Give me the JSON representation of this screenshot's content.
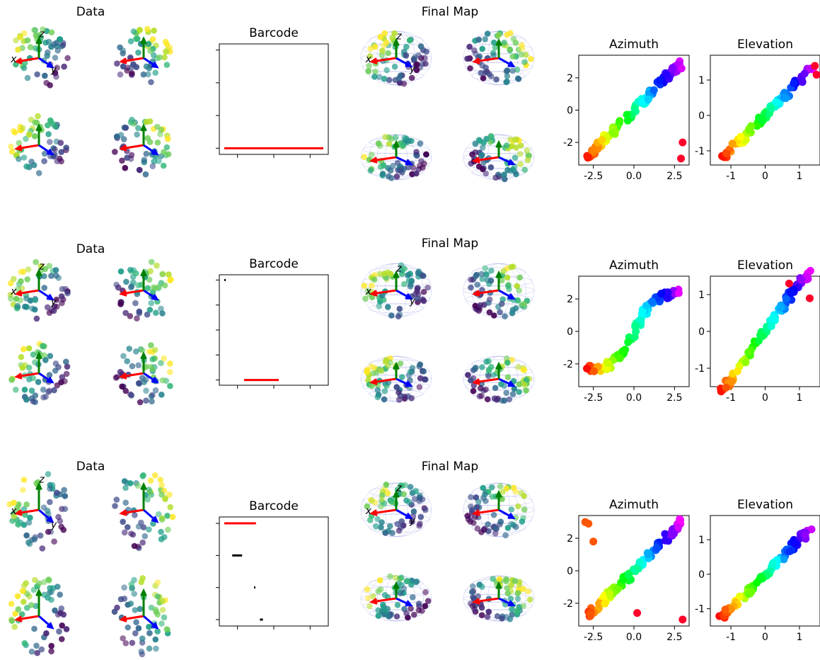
{
  "figure": {
    "background": "#ffffff"
  },
  "rows": [
    {
      "data_title": "Data",
      "map_title": "Final Map",
      "axis_letters": [
        "x",
        "y",
        "z"
      ],
      "barcode": {
        "title": "Barcode",
        "bars": [
          {
            "birth": 0.0,
            "death": 1.0,
            "level": 0,
            "color": "#ff0000"
          }
        ],
        "xlim": [
          -0.05,
          1.05
        ],
        "ylim": [
          -0.2,
          3.4
        ],
        "xticks": 3,
        "yticks": 4
      },
      "azimuth": {
        "title": "Azimuth",
        "xticks": [
          "-2.5",
          "0.0",
          "2.5"
        ],
        "xtick_values": [
          -2.5,
          0.0,
          2.5
        ],
        "yticks": [
          "-2",
          "0",
          "2"
        ],
        "ytick_values": [
          -2,
          0,
          2
        ],
        "xlim": [
          -3.4,
          3.4
        ],
        "ylim": [
          -3.4,
          3.4
        ],
        "profile": "line",
        "outliers": [
          [
            3.0,
            -2.0
          ],
          [
            2.9,
            -3.0
          ]
        ]
      },
      "elevation": {
        "title": "Elevation",
        "xticks": [
          "-1",
          "0",
          "1"
        ],
        "xtick_values": [
          -1,
          0,
          1
        ],
        "yticks": [
          "-1",
          "0",
          "1"
        ],
        "ytick_values": [
          -1,
          0,
          1
        ],
        "xlim": [
          -1.6,
          1.6
        ],
        "ylim": [
          -1.4,
          1.7
        ],
        "profile": "line",
        "outliers": [
          [
            1.45,
            1.4
          ],
          [
            1.5,
            1.15
          ]
        ]
      }
    },
    {
      "data_title": "Data",
      "map_title": "Final Map",
      "axis_letters": [
        "x",
        "y",
        "z"
      ],
      "barcode": {
        "title": "Barcode",
        "bars": [
          {
            "birth": 0.0,
            "death": 0.01,
            "level": 3.8,
            "color": "#000000"
          },
          {
            "birth": 0.2,
            "death": 0.55,
            "level": 0,
            "color": "#ff0000"
          }
        ],
        "xlim": [
          -0.05,
          1.05
        ],
        "ylim": [
          -0.2,
          4.0
        ],
        "xticks": 3,
        "yticks": 5
      },
      "azimuth": {
        "title": "Azimuth",
        "xticks": [
          "-2.5",
          "0.0",
          "2.5"
        ],
        "xtick_values": [
          -2.5,
          0.0,
          2.5
        ],
        "yticks": [
          "-2",
          "0",
          "2"
        ],
        "ytick_values": [
          -2,
          0,
          2
        ],
        "xlim": [
          -3.4,
          3.4
        ],
        "ylim": [
          -3.4,
          3.4
        ],
        "profile": "s",
        "outliers": []
      },
      "elevation": {
        "title": "Elevation",
        "xticks": [
          "-1",
          "0",
          "1"
        ],
        "xtick_values": [
          -1,
          0,
          1
        ],
        "yticks": [
          "-1",
          "0",
          "1"
        ],
        "ytick_values": [
          -1,
          0,
          1
        ],
        "xlim": [
          -1.6,
          1.6
        ],
        "ylim": [
          -1.5,
          1.5
        ],
        "profile": "s",
        "outliers": [
          [
            1.3,
            0.9
          ],
          [
            0.7,
            1.3
          ]
        ]
      }
    },
    {
      "data_title": "Data",
      "map_title": "Final Map",
      "axis_letters": [
        "x",
        "y",
        "z"
      ],
      "barcode": {
        "title": "Barcode",
        "bars": [
          {
            "birth": 0.0,
            "death": 0.32,
            "level": 3.0,
            "color": "#ff0000"
          },
          {
            "birth": 0.08,
            "death": 0.18,
            "level": 2.0,
            "color": "#000000"
          },
          {
            "birth": 0.3,
            "death": 0.31,
            "level": 1.0,
            "color": "#000000"
          },
          {
            "birth": 0.36,
            "death": 0.39,
            "level": 0,
            "color": "#000000"
          }
        ],
        "xlim": [
          -0.05,
          1.05
        ],
        "ylim": [
          -0.2,
          3.2
        ],
        "xticks": 3,
        "yticks": 4
      },
      "azimuth": {
        "title": "Azimuth",
        "xticks": [
          "-2.5",
          "0.0",
          "2.5"
        ],
        "xtick_values": [
          -2.5,
          0.0,
          2.5
        ],
        "yticks": [
          "-2",
          "0",
          "2"
        ],
        "ytick_values": [
          -2,
          0,
          2
        ],
        "xlim": [
          -3.4,
          3.4
        ],
        "ylim": [
          -3.4,
          3.4
        ],
        "profile": "line",
        "outliers": [
          [
            -3.0,
            3.0
          ],
          [
            -2.8,
            2.9
          ],
          [
            -2.5,
            1.8
          ],
          [
            3.0,
            -3.0
          ],
          [
            0.2,
            -2.6
          ]
        ]
      },
      "elevation": {
        "title": "Elevation",
        "xticks": [
          "-1",
          "0",
          "1"
        ],
        "xtick_values": [
          -1,
          0,
          1
        ],
        "yticks": [
          "-1",
          "0",
          "1"
        ],
        "ytick_values": [
          -1,
          0,
          1
        ],
        "xlim": [
          -1.6,
          1.6
        ],
        "ylim": [
          -1.5,
          1.7
        ],
        "profile": "line",
        "outliers": []
      }
    }
  ],
  "colors": {
    "x_arrow": "#ff0000",
    "y_arrow": "#0000ff",
    "z_arrow": "#008000",
    "sphere_wire": "#9aa0e6"
  },
  "chart_data": [
    {
      "type": "scatter",
      "title": "Azimuth",
      "xlabel": "",
      "ylabel": "",
      "description_values": "points lie close to the diagonal y = x, hue mapped around the color wheel",
      "xlim": [
        -3.4,
        3.4
      ],
      "ylim": [
        -3.4,
        3.4
      ]
    },
    {
      "type": "scatter",
      "title": "Elevation",
      "xlabel": "",
      "ylabel": "",
      "xlim": [
        -1.6,
        1.6
      ],
      "ylim": [
        -1.5,
        1.7
      ]
    },
    {
      "type": "bar",
      "title": "Barcode",
      "xlabel": "",
      "ylabel": ""
    }
  ]
}
